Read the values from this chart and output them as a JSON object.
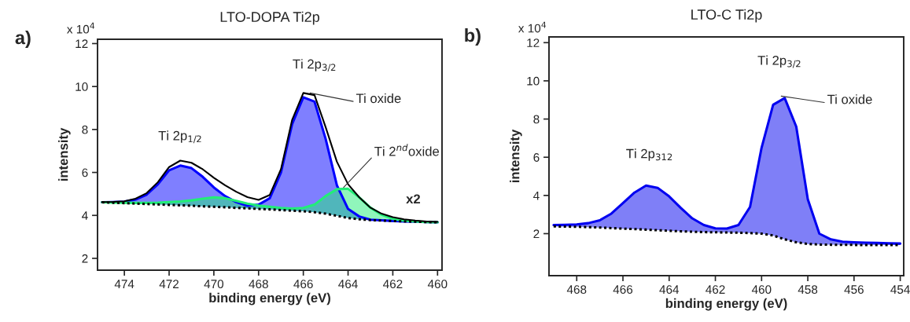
{
  "chart_data": [
    {
      "type": "line",
      "title": "LTO-DOPA Ti2p",
      "xlabel": "binding energy (eV)",
      "ylabel": "intensity",
      "x": [
        475,
        474.5,
        474,
        473.5,
        473,
        472.5,
        472,
        471.5,
        471,
        470.5,
        470,
        469.5,
        469,
        468.5,
        468,
        467.5,
        467,
        466.5,
        466,
        465.5,
        465,
        464.5,
        464,
        463.5,
        463,
        462.5,
        462,
        461.5,
        461,
        460.5,
        460
      ],
      "series": [
        {
          "type": "area",
          "color": "#0000ff",
          "values": [
            4.61,
            4.62,
            4.64,
            4.74,
            4.97,
            5.45,
            6.1,
            6.32,
            6.2,
            5.8,
            5.3,
            4.9,
            4.62,
            4.45,
            4.5,
            4.8,
            6.0,
            8.25,
            9.5,
            9.3,
            7.55,
            5.4,
            4.3,
            3.95,
            3.8,
            3.77,
            3.74,
            3.72,
            3.71,
            3.69,
            3.68
          ]
        },
        {
          "type": "area",
          "color": "#22ee77",
          "values": [
            4.61,
            4.6,
            4.59,
            4.58,
            4.58,
            4.59,
            4.62,
            4.65,
            4.7,
            4.78,
            4.84,
            4.8,
            4.68,
            4.55,
            4.46,
            4.4,
            4.35,
            4.32,
            4.35,
            4.5,
            4.9,
            5.22,
            5.24,
            4.84,
            4.36,
            4.03,
            3.84,
            3.75,
            3.72,
            3.69,
            3.68
          ]
        },
        {
          "color": "#000000",
          "values": [
            4.62,
            4.63,
            4.66,
            4.78,
            5.04,
            5.55,
            6.25,
            6.55,
            6.45,
            6.15,
            5.75,
            5.4,
            5.1,
            4.85,
            4.72,
            4.95,
            6.15,
            8.45,
            9.7,
            9.6,
            8.1,
            6.5,
            5.45,
            4.84,
            4.36,
            4.08,
            3.92,
            3.82,
            3.76,
            3.72,
            3.7
          ]
        },
        {
          "color": "#000000",
          "line_style": "dotted",
          "values": [
            4.61,
            4.59,
            4.57,
            4.55,
            4.53,
            4.51,
            4.49,
            4.47,
            4.45,
            4.42,
            4.4,
            4.38,
            4.35,
            4.33,
            4.3,
            4.28,
            4.25,
            4.22,
            4.19,
            4.15,
            4.08,
            3.98,
            3.88,
            3.82,
            3.78,
            3.76,
            3.74,
            3.72,
            3.71,
            3.69,
            3.68
          ]
        }
      ],
      "xlim": [
        475.2,
        459.8
      ],
      "xticks": [
        474,
        472,
        470,
        468,
        466,
        464,
        462,
        460
      ],
      "ylim": [
        1.45,
        12.2
      ],
      "yticks": [
        2,
        4,
        6,
        8,
        10,
        12
      ],
      "annotations": [
        "a)",
        "x 10$^{4}$",
        {
          "text": "Ti 2p$_{1/2}$",
          "x": 471.5,
          "y": 6.55
        },
        "Ti 2p$_{3/2}$",
        {
          "text": "Ti oxide",
          "x": 465.7,
          "y": 9.7
        },
        {
          "text": "Ti 2$^{nd}$oxide",
          "x": 464.2,
          "y": 5.3
        },
        {
          "text": "x2",
          "x": 460.5,
          "y": 3.72
        }
      ]
    },
    {
      "type": "line",
      "title": "LTO-C Ti2p",
      "xlabel": "binding energy (eV)",
      "ylabel": "intensity",
      "x": [
        469,
        468.5,
        468,
        467.5,
        467,
        466.5,
        466,
        465.5,
        465,
        464.5,
        464,
        463.5,
        463,
        462.5,
        462,
        461.5,
        461,
        460.5,
        460,
        459.5,
        459,
        458.5,
        458,
        457.5,
        457,
        456.5,
        456,
        455.5,
        455,
        454.5,
        454
      ],
      "series": [
        {
          "type": "area",
          "color": "#0000f0",
          "values": [
            2.45,
            2.46,
            2.48,
            2.55,
            2.7,
            3.05,
            3.6,
            4.15,
            4.52,
            4.4,
            3.95,
            3.35,
            2.8,
            2.45,
            2.28,
            2.27,
            2.45,
            3.4,
            6.5,
            8.75,
            9.1,
            7.6,
            3.8,
            2.0,
            1.7,
            1.58,
            1.55,
            1.53,
            1.52,
            1.5,
            1.48
          ]
        },
        {
          "color": "#000000",
          "line_style": "dotted",
          "values": [
            2.38,
            2.37,
            2.36,
            2.34,
            2.32,
            2.29,
            2.26,
            2.24,
            2.21,
            2.18,
            2.15,
            2.12,
            2.1,
            2.08,
            2.07,
            2.06,
            2.05,
            2.03,
            2.0,
            1.9,
            1.7,
            1.55,
            1.46,
            1.43,
            1.42,
            1.41,
            1.41,
            1.4,
            1.4,
            1.4,
            1.4
          ]
        }
      ],
      "xlim": [
        469.2,
        453.85
      ],
      "xticks": [
        468,
        466,
        464,
        462,
        460,
        458,
        456,
        454
      ],
      "ylim": [
        -0.2,
        12.3
      ],
      "yticks": [
        2,
        4,
        6,
        8,
        10,
        12
      ],
      "annotations": [
        "b)",
        "x 10$^{4}$",
        {
          "text": "Ti 2p$_{312}$",
          "x": 464.85,
          "y": 4.55
        },
        "Ti 2p$_{3/2}$",
        {
          "text": "Ti oxide",
          "x": 459.15,
          "y": 9.2
        }
      ]
    }
  ]
}
